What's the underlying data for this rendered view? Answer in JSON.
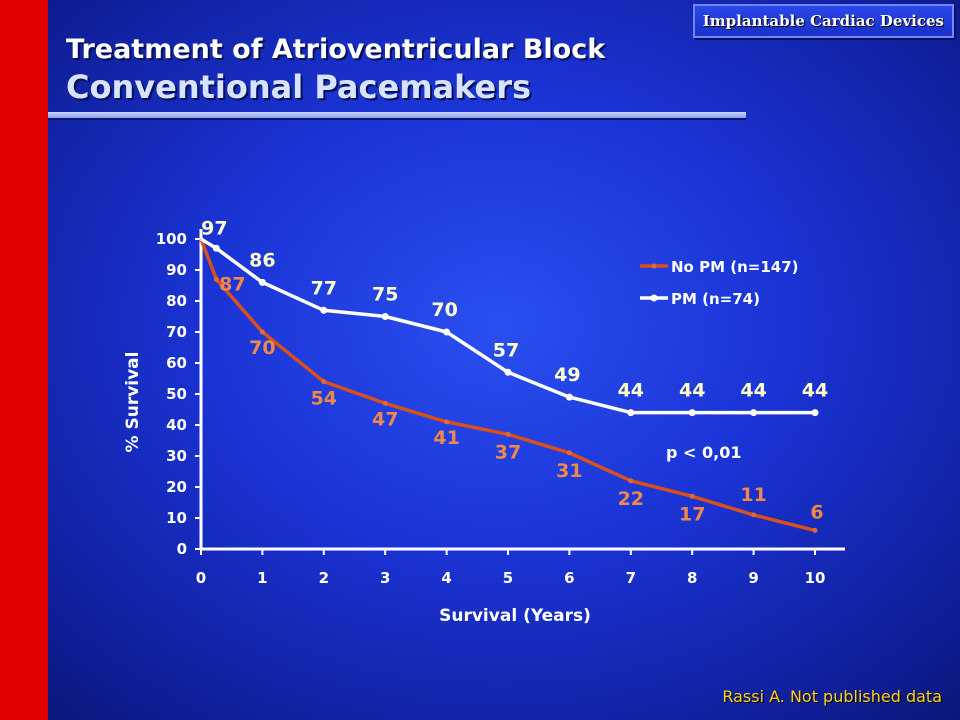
{
  "header": {
    "tag": "Implantable Cardiac Devices",
    "title_line1": "Treatment of Atrioventricular Block",
    "title_line2": "Conventional Pacemakers"
  },
  "source": "Rassi A. Not published data",
  "colors": {
    "no_pm": "#d9501a",
    "pm": "#ffffff",
    "accent_red": "#e00000",
    "source_text": "#ffd21a"
  },
  "chart_data": {
    "type": "line",
    "xlabel": "Survival (Years)",
    "ylabel": "% Survival",
    "xlim": [
      0,
      10
    ],
    "ylim": [
      0,
      100
    ],
    "x_ticks": [
      0,
      1,
      2,
      3,
      4,
      5,
      6,
      7,
      8,
      9,
      10
    ],
    "y_ticks": [
      0,
      10,
      20,
      30,
      40,
      50,
      60,
      70,
      80,
      90,
      100
    ],
    "grid": false,
    "legend_position": "top-right",
    "annotation": "p < 0,01",
    "series": [
      {
        "name": "No PM (n=147)",
        "color": "#d9501a",
        "x": [
          0,
          0.25,
          1,
          2,
          3,
          4,
          5,
          6,
          7,
          8,
          9,
          10
        ],
        "y": [
          100,
          87,
          70,
          54,
          47,
          41,
          37,
          31,
          22,
          17,
          11,
          6
        ],
        "labels": [
          "",
          "87",
          "70",
          "54",
          "47",
          "41",
          "37",
          "31",
          "22",
          "17",
          "11",
          "6"
        ]
      },
      {
        "name": "PM (n=74)",
        "color": "#ffffff",
        "x": [
          0,
          0.25,
          1,
          2,
          3,
          4,
          5,
          6,
          7,
          8,
          9,
          10
        ],
        "y": [
          100,
          97,
          86,
          77,
          75,
          70,
          57,
          49,
          44,
          44,
          44,
          44
        ],
        "labels": [
          "",
          "97",
          "86",
          "77",
          "75",
          "70",
          "57",
          "49",
          "44",
          "44",
          "44",
          "44"
        ]
      }
    ]
  }
}
